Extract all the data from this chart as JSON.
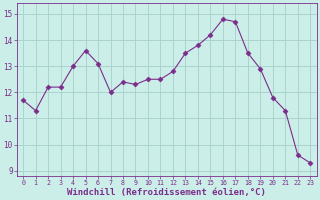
{
  "x": [
    0,
    1,
    2,
    3,
    4,
    5,
    6,
    7,
    8,
    9,
    10,
    11,
    12,
    13,
    14,
    15,
    16,
    17,
    18,
    19,
    20,
    21,
    22,
    23
  ],
  "y": [
    11.7,
    11.3,
    12.2,
    12.2,
    13.0,
    13.6,
    13.1,
    12.0,
    12.4,
    12.3,
    12.5,
    12.5,
    12.8,
    13.5,
    13.8,
    14.2,
    14.8,
    14.7,
    13.5,
    12.9,
    11.8,
    11.3,
    9.6,
    9.3
  ],
  "line_color": "#7b2d8b",
  "marker": "D",
  "marker_size": 2.5,
  "xlabel": "Windchill (Refroidissement éolien,°C)",
  "xlabel_fontsize": 6.5,
  "ylabel_ticks": [
    9,
    10,
    11,
    12,
    13,
    14,
    15
  ],
  "xtick_labels": [
    "0",
    "1",
    "2",
    "3",
    "4",
    "5",
    "6",
    "7",
    "8",
    "9",
    "10",
    "11",
    "12",
    "13",
    "14",
    "15",
    "16",
    "17",
    "18",
    "19",
    "20",
    "21",
    "22",
    "23"
  ],
  "ylim": [
    8.8,
    15.4
  ],
  "xlim": [
    -0.5,
    23.5
  ],
  "background_color": "#cceee8",
  "grid_color": "#aad4ce",
  "tick_color": "#7b2d8b",
  "tick_label_color": "#7b2d8b"
}
